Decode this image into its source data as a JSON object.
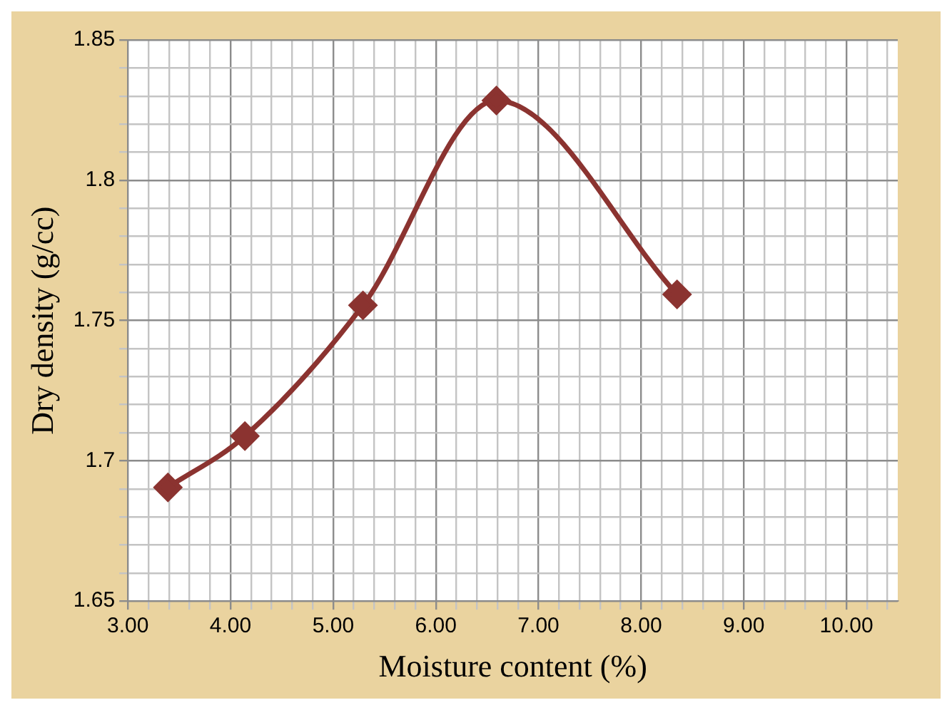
{
  "chart_data": {
    "type": "line",
    "xlabel": "Moisture content (%)",
    "ylabel": "Dry density (g/cc)",
    "x": [
      3.39,
      4.14,
      5.29,
      6.59,
      8.35
    ],
    "series": [
      {
        "color": "#8b3330",
        "values": [
          1.6905,
          1.7088,
          1.7554,
          1.8284,
          1.7593
        ]
      }
    ],
    "xlim": [
      3,
      10.5
    ],
    "xticks": [
      {
        "value": 3,
        "label": "3.00"
      },
      {
        "value": 3.2,
        "label": null
      },
      {
        "value": 3.4,
        "label": null
      },
      {
        "value": 3.6,
        "label": null
      },
      {
        "value": 3.8,
        "label": null
      },
      {
        "value": 4,
        "label": "4.00"
      },
      {
        "value": 4.2,
        "label": null
      },
      {
        "value": 4.4,
        "label": null
      },
      {
        "value": 4.6,
        "label": null
      },
      {
        "value": 4.8,
        "label": null
      },
      {
        "value": 5,
        "label": "5.00"
      },
      {
        "value": 5.2,
        "label": null
      },
      {
        "value": 5.4,
        "label": null
      },
      {
        "value": 5.6,
        "label": null
      },
      {
        "value": 5.8,
        "label": null
      },
      {
        "value": 6,
        "label": "6.00"
      },
      {
        "value": 6.2,
        "label": null
      },
      {
        "value": 6.4,
        "label": null
      },
      {
        "value": 6.6,
        "label": null
      },
      {
        "value": 6.8,
        "label": null
      },
      {
        "value": 7,
        "label": "7.00"
      },
      {
        "value": 7.2,
        "label": null
      },
      {
        "value": 7.4,
        "label": null
      },
      {
        "value": 7.6,
        "label": null
      },
      {
        "value": 7.8,
        "label": null
      },
      {
        "value": 8,
        "label": "8.00"
      },
      {
        "value": 8.2,
        "label": null
      },
      {
        "value": 8.4,
        "label": null
      },
      {
        "value": 8.6,
        "label": null
      },
      {
        "value": 8.8,
        "label": null
      },
      {
        "value": 9,
        "label": "9.00"
      },
      {
        "value": 9.2,
        "label": null
      },
      {
        "value": 9.4,
        "label": null
      },
      {
        "value": 9.6,
        "label": null
      },
      {
        "value": 9.8,
        "label": null
      },
      {
        "value": 10,
        "label": "10.00"
      },
      {
        "value": 10.2,
        "label": null
      },
      {
        "value": 10.4,
        "label": null
      }
    ],
    "ylim": [
      1.65,
      1.85
    ],
    "yticks": [
      1.65,
      {
        "value": 1.66,
        "label": null
      },
      {
        "value": 1.67,
        "label": null
      },
      {
        "value": 1.68,
        "label": null
      },
      {
        "value": 1.69,
        "label": null
      },
      1.7,
      {
        "value": 1.71,
        "label": null
      },
      {
        "value": 1.72,
        "label": null
      },
      {
        "value": 1.73,
        "label": null
      },
      {
        "value": 1.74,
        "label": null
      },
      1.75,
      {
        "value": 1.76,
        "label": null
      },
      {
        "value": 1.77,
        "label": null
      },
      {
        "value": 1.78,
        "label": null
      },
      {
        "value": 1.79,
        "label": null
      },
      1.8,
      {
        "value": 1.81,
        "label": null
      },
      {
        "value": 1.82,
        "label": null
      },
      {
        "value": 1.83,
        "label": null
      },
      {
        "value": 1.84,
        "label": null
      },
      1.85
    ],
    "grid": true,
    "legend": false,
    "marker": "diamond",
    "line_style": "solid"
  }
}
